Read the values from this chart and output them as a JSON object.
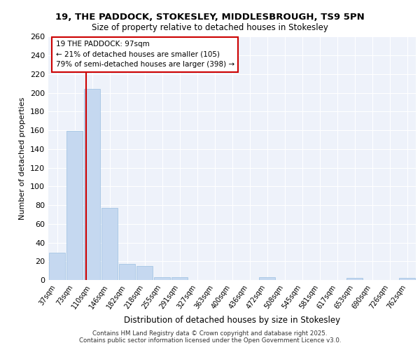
{
  "title1": "19, THE PADDOCK, STOKESLEY, MIDDLESBROUGH, TS9 5PN",
  "title2": "Size of property relative to detached houses in Stokesley",
  "xlabel": "Distribution of detached houses by size in Stokesley",
  "ylabel": "Number of detached properties",
  "categories": [
    "37sqm",
    "73sqm",
    "110sqm",
    "146sqm",
    "182sqm",
    "218sqm",
    "255sqm",
    "291sqm",
    "327sqm",
    "363sqm",
    "400sqm",
    "436sqm",
    "472sqm",
    "508sqm",
    "545sqm",
    "581sqm",
    "617sqm",
    "653sqm",
    "690sqm",
    "726sqm",
    "762sqm"
  ],
  "values": [
    29,
    159,
    204,
    77,
    17,
    15,
    3,
    3,
    0,
    0,
    0,
    0,
    3,
    0,
    0,
    0,
    0,
    2,
    0,
    0,
    2
  ],
  "bar_color": "#c5d8f0",
  "bar_edgecolor": "#9bbfe0",
  "vline_color": "#cc0000",
  "annotation_title": "19 THE PADDOCK: 97sqm",
  "annotation_line1": "← 21% of detached houses are smaller (105)",
  "annotation_line2": "79% of semi-detached houses are larger (398) →",
  "ylim": [
    0,
    260
  ],
  "yticks": [
    0,
    20,
    40,
    60,
    80,
    100,
    120,
    140,
    160,
    180,
    200,
    220,
    240,
    260
  ],
  "bg_color": "#eef2fa",
  "grid_color": "#ffffff",
  "footer1": "Contains HM Land Registry data © Crown copyright and database right 2025.",
  "footer2": "Contains public sector information licensed under the Open Government Licence v3.0."
}
